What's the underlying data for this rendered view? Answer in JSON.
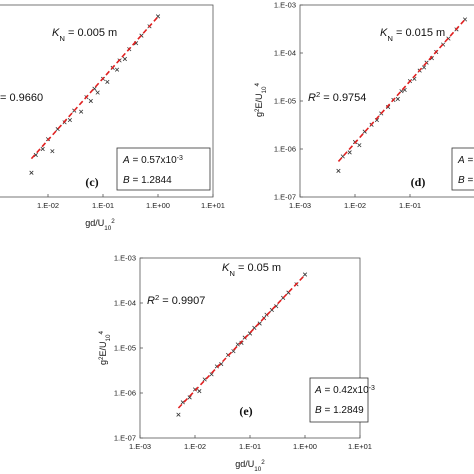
{
  "chart_data": [
    {
      "type": "scatter",
      "label": "(c)",
      "xscale": "log",
      "yscale": "log",
      "xlim": [
        0.001,
        10
      ],
      "ylim": [
        1e-07,
        0.001
      ],
      "xticks": [
        {
          "value": 0.01,
          "label": "1.E-02"
        },
        {
          "value": 0.1,
          "label": "1.E-01"
        },
        {
          "value": 1,
          "label": "1.E+00"
        },
        {
          "value": 10,
          "label": "1.E+01"
        }
      ],
      "xlabel": [
        {
          "text": "gd/U"
        },
        {
          "text": "10",
          "style": "sub"
        },
        {
          "text": "2",
          "style": "sup"
        }
      ],
      "annotations": [
        [
          {
            "text": "= 0.9660"
          }
        ],
        [
          {
            "text": "K",
            "style": "italic"
          },
          {
            "text": "N",
            "style": "sub"
          },
          {
            "text": " = 0.005 m"
          }
        ]
      ],
      "box": [
        [
          {
            "text": "A",
            "style": "italic"
          },
          {
            "text": " = 0.57x10"
          },
          {
            "text": "-3",
            "style": "sup"
          }
        ],
        [
          {
            "text": "B",
            "style": "italic"
          },
          {
            "text": " = 1.2844"
          }
        ]
      ],
      "series": [
        {
          "kind": "points",
          "color": "#333333",
          "x": [
            0.005,
            0.006,
            0.008,
            0.01,
            0.012,
            0.015,
            0.02,
            0.025,
            0.03,
            0.04,
            0.05,
            0.06,
            0.07,
            0.08,
            0.1,
            0.12,
            0.15,
            0.18,
            0.2,
            0.25,
            0.3,
            0.4,
            0.5,
            0.7,
            1.0
          ],
          "values": [
            3.2e-07,
            7.5e-07,
            1e-06,
            1.6e-06,
            9e-07,
            2.6e-06,
            3.6e-06,
            4e-06,
            6.3e-06,
            6e-06,
            1.2e-05,
            1e-05,
            1.8e-05,
            1.5e-05,
            2.9e-05,
            2.5e-05,
            4.9e-05,
            4.5e-05,
            7e-05,
            7.5e-05,
            0.00012,
            0.00016,
            0.00023,
            0.00036,
            0.00058
          ]
        },
        {
          "kind": "fit",
          "color": "#e02020",
          "x": [
            0.005,
            1.0
          ],
          "values": [
            6.3e-07,
            0.00057
          ]
        }
      ]
    },
    {
      "type": "scatter",
      "label": "(d)",
      "xscale": "log",
      "yscale": "log",
      "xlim": [
        0.001,
        10
      ],
      "ylim": [
        1e-07,
        0.001
      ],
      "xticks": [
        {
          "value": 0.001,
          "label": "1.E-03"
        },
        {
          "value": 0.01,
          "label": "1.E-02"
        },
        {
          "value": 0.1,
          "label": "1.E-01"
        }
      ],
      "yticks": [
        {
          "value": 1e-07,
          "label": "1.E-07"
        },
        {
          "value": 1e-06,
          "label": "1.E-06"
        },
        {
          "value": 1e-05,
          "label": "1.E-05"
        },
        {
          "value": 0.0001,
          "label": "1.E-04"
        },
        {
          "value": 0.001,
          "label": "1.E-03"
        }
      ],
      "ylabel": [
        {
          "text": "g"
        },
        {
          "text": "2",
          "style": "sup"
        },
        {
          "text": "E/U"
        },
        {
          "text": "10",
          "style": "sub"
        },
        {
          "text": "4",
          "style": "sup"
        }
      ],
      "annotations": [
        [
          {
            "text": "R",
            "style": "italic"
          },
          {
            "text": "2",
            "style": "sup"
          },
          {
            "text": " = 0.9754"
          }
        ],
        [
          {
            "text": "K",
            "style": "italic"
          },
          {
            "text": "N",
            "style": "sub"
          },
          {
            "text": " = 0.015 m"
          }
        ]
      ],
      "box": [
        [
          {
            "text": "A",
            "style": "italic"
          },
          {
            "text": " ="
          }
        ],
        [
          {
            "text": "B",
            "style": "italic"
          },
          {
            "text": " ="
          }
        ]
      ],
      "series": [
        {
          "kind": "points",
          "color": "#333333",
          "x": [
            0.005,
            0.006,
            0.008,
            0.01,
            0.012,
            0.015,
            0.02,
            0.025,
            0.03,
            0.04,
            0.05,
            0.06,
            0.07,
            0.08,
            0.1,
            0.12,
            0.15,
            0.18,
            0.2,
            0.25,
            0.3,
            0.4,
            0.5,
            0.7,
            1.0
          ],
          "values": [
            3.5e-07,
            7e-07,
            8.5e-07,
            1.4e-06,
            1.2e-06,
            2.3e-06,
            3.2e-06,
            4e-06,
            5.5e-06,
            7.5e-06,
            1.05e-05,
            1.1e-05,
            1.6e-05,
            1.7e-05,
            2.6e-05,
            2.9e-05,
            4.3e-05,
            5e-05,
            6.3e-05,
            7.8e-05,
            0.000105,
            0.00015,
            0.0002,
            0.00031,
            0.0005
          ]
        },
        {
          "kind": "fit",
          "color": "#e02020",
          "x": [
            0.005,
            1.0
          ],
          "values": [
            5.5e-07,
            0.0005
          ]
        }
      ]
    },
    {
      "type": "scatter",
      "label": "(e)",
      "xscale": "log",
      "yscale": "log",
      "xlim": [
        0.001,
        10
      ],
      "ylim": [
        1e-07,
        0.001
      ],
      "xticks": [
        {
          "value": 0.001,
          "label": "1.E-03"
        },
        {
          "value": 0.01,
          "label": "1.E-02"
        },
        {
          "value": 0.1,
          "label": "1.E-01"
        },
        {
          "value": 1,
          "label": "1.E+00"
        },
        {
          "value": 10,
          "label": "1.E+01"
        }
      ],
      "yticks": [
        {
          "value": 1e-07,
          "label": "1.E-07"
        },
        {
          "value": 1e-06,
          "label": "1.E-06"
        },
        {
          "value": 1e-05,
          "label": "1.E-05"
        },
        {
          "value": 0.0001,
          "label": "1.E-04"
        },
        {
          "value": 0.001,
          "label": "1.E-03"
        }
      ],
      "xlabel": [
        {
          "text": "gd/U"
        },
        {
          "text": "10",
          "style": "sub"
        },
        {
          "text": "2",
          "style": "sup"
        }
      ],
      "ylabel": [
        {
          "text": "g"
        },
        {
          "text": "2",
          "style": "sup"
        },
        {
          "text": "E/U"
        },
        {
          "text": "10",
          "style": "sub"
        },
        {
          "text": "4",
          "style": "sup"
        }
      ],
      "annotations": [
        [
          {
            "text": "R",
            "style": "italic"
          },
          {
            "text": "2",
            "style": "sup"
          },
          {
            "text": " = 0.9907"
          }
        ],
        [
          {
            "text": "K",
            "style": "italic"
          },
          {
            "text": "N",
            "style": "sub"
          },
          {
            "text": " = 0.05 m"
          }
        ]
      ],
      "box": [
        [
          {
            "text": "A",
            "style": "italic"
          },
          {
            "text": " = 0.42x10"
          },
          {
            "text": "-3",
            "style": "sup"
          }
        ],
        [
          {
            "text": "B",
            "style": "italic"
          },
          {
            "text": " = 1.2849"
          }
        ]
      ],
      "series": [
        {
          "kind": "points",
          "color": "#333333",
          "x": [
            0.005,
            0.006,
            0.008,
            0.01,
            0.012,
            0.015,
            0.02,
            0.025,
            0.03,
            0.04,
            0.05,
            0.06,
            0.07,
            0.08,
            0.1,
            0.12,
            0.15,
            0.18,
            0.2,
            0.25,
            0.3,
            0.4,
            0.5,
            0.7,
            1.0
          ],
          "values": [
            3.3e-07,
            6.2e-07,
            8e-07,
            1.2e-06,
            1.1e-06,
            2e-06,
            2.6e-06,
            3.9e-06,
            4.4e-06,
            7e-06,
            8.5e-06,
            1.2e-05,
            1.3e-05,
            1.7e-05,
            2.1e-05,
            2.8e-05,
            3.5e-05,
            4.6e-05,
            5.5e-05,
            7e-05,
            8.5e-05,
            0.00013,
            0.00017,
            0.00026,
            0.00043
          ]
        },
        {
          "kind": "fit",
          "color": "#e02020",
          "x": [
            0.005,
            1.0
          ],
          "values": [
            4.64e-07,
            0.00042
          ]
        }
      ]
    }
  ]
}
